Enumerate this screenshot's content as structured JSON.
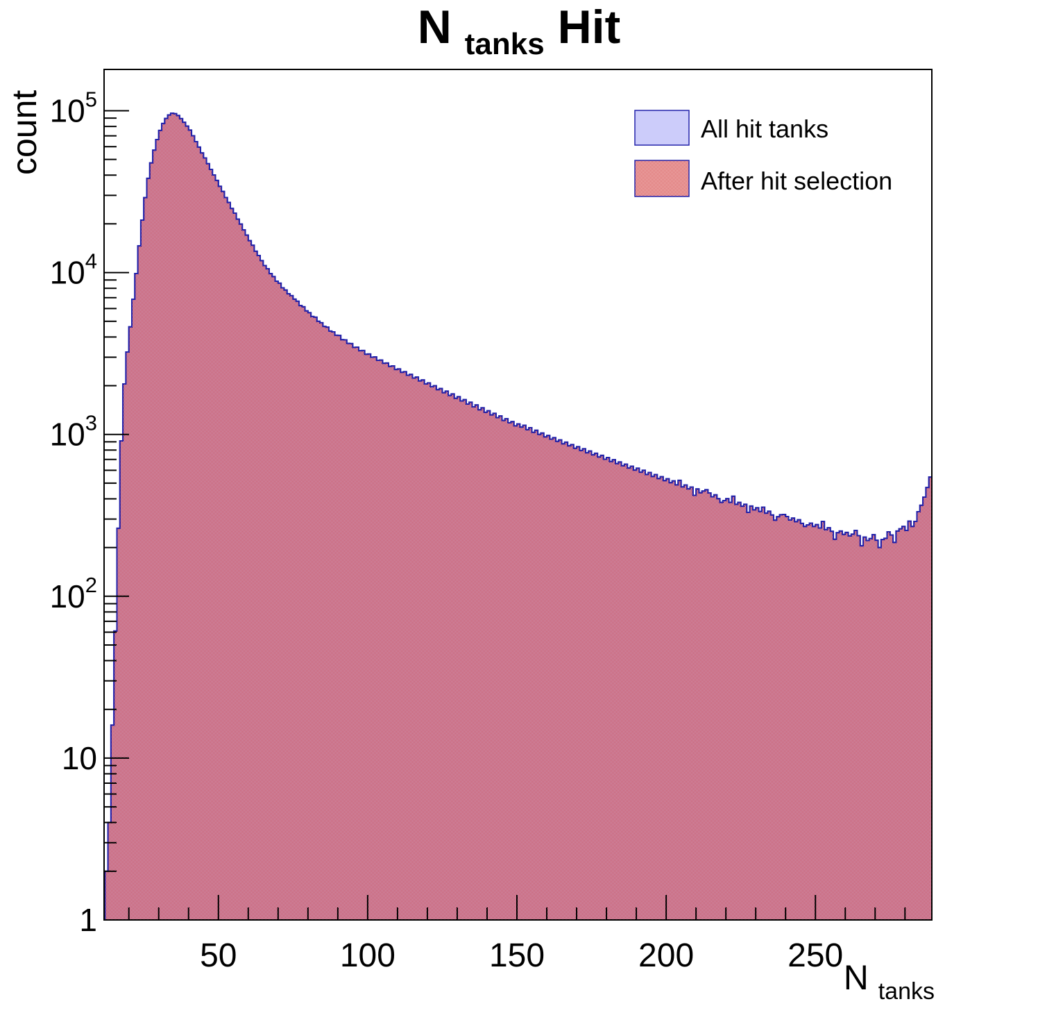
{
  "figure": {
    "title": {
      "pre": "N",
      "sub": "tanks",
      "post": " Hit"
    },
    "y_axis": {
      "label": "count",
      "ticks": [
        {
          "value": 100000,
          "base": "10",
          "exp": "5"
        },
        {
          "value": 10000,
          "base": "10",
          "exp": "4"
        },
        {
          "value": 1000,
          "base": "10",
          "exp": "3"
        },
        {
          "value": 100,
          "base": "10",
          "exp": "2"
        },
        {
          "value": 10,
          "base": "10",
          "exp": ""
        },
        {
          "value": 1,
          "base": "1",
          "exp": ""
        }
      ]
    },
    "x_axis": {
      "label_pre": "N",
      "label_sub": "tanks",
      "ticks": [
        {
          "value": 50,
          "label": "50"
        },
        {
          "value": 100,
          "label": "100"
        },
        {
          "value": 150,
          "label": "150"
        },
        {
          "value": 200,
          "label": "200"
        },
        {
          "value": 250,
          "label": "250"
        }
      ],
      "minor_step": 10
    },
    "legend": {
      "items": [
        {
          "label": "All hit tanks",
          "swatch": "solid-lavender"
        },
        {
          "label": "After hit selection",
          "swatch": "red-hatch"
        }
      ]
    }
  },
  "colors": {
    "all_fill": "#ccccfa",
    "hatch_red": "#cc2222",
    "outline": "#2222aa",
    "axis": "#000000"
  },
  "chart_data": {
    "type": "bar",
    "subtype": "histogram-log-y",
    "title": "N_tanks Hit",
    "xlabel": "N_tanks",
    "ylabel": "count",
    "yscale": "log",
    "xlim": [
      11.7,
      289
    ],
    "ylim": [
      1,
      180000
    ],
    "grid": false,
    "legend_position": "top-right-inside",
    "x_start": 12,
    "bin_width": 1,
    "series": [
      {
        "name": "All hit tanks",
        "style": "solid-lavender"
      },
      {
        "name": "After hit selection",
        "style": "red-hatch",
        "note": "visually identical to All hit tanks; overlaps everywhere"
      }
    ],
    "counts": [
      2,
      4,
      16,
      61,
      263,
      912,
      2050,
      3230,
      4620,
      6840,
      9860,
      14620,
      21100,
      29050,
      38200,
      47600,
      57100,
      66400,
      75600,
      83400,
      89600,
      94100,
      96600,
      95900,
      93400,
      89400,
      84900,
      80400,
      75900,
      70100,
      64400,
      59600,
      54900,
      51100,
      47100,
      43400,
      40100,
      37100,
      34100,
      31700,
      29100,
      27100,
      24900,
      23300,
      21400,
      19950,
      18350,
      17050,
      15750,
      14750,
      13550,
      12750,
      11850,
      11050,
      10550,
      9850,
      9450,
      8850,
      8600,
      8050,
      7800,
      7400,
      7200,
      6850,
      6650,
      6250,
      6150,
      5800,
      5650,
      5350,
      5300,
      5000,
      4900,
      4650,
      4600,
      4350,
      4300,
      4100,
      4090,
      3850,
      3840,
      3650,
      3640,
      3450,
      3460,
      3290,
      3300,
      3130,
      3140,
      3000,
      3010,
      2870,
      2880,
      2750,
      2760,
      2630,
      2650,
      2520,
      2540,
      2420,
      2440,
      2320,
      2350,
      2230,
      2260,
      2140,
      2170,
      2050,
      2080,
      1970,
      2000,
      1890,
      1920,
      1810,
      1850,
      1740,
      1780,
      1670,
      1710,
      1610,
      1640,
      1540,
      1580,
      1480,
      1520,
      1420,
      1460,
      1370,
      1400,
      1320,
      1350,
      1270,
      1300,
      1220,
      1250,
      1180,
      1200,
      1130,
      1160,
      1110,
      1140,
      1070,
      1100,
      1030,
      1060,
      1000,
      1020,
      965,
      985,
      935,
      955,
      905,
      925,
      875,
      895,
      850,
      865,
      820,
      840,
      795,
      815,
      770,
      790,
      748,
      765,
      725,
      742,
      702,
      720,
      680,
      698,
      660,
      676,
      640,
      655,
      620,
      636,
      602,
      618,
      584,
      600,
      566,
      582,
      550,
      565,
      534,
      548,
      518,
      532,
      503,
      516,
      488,
      520,
      474,
      487,
      461,
      473,
      420,
      460,
      436,
      447,
      455,
      435,
      412,
      423,
      401,
      380,
      390,
      401,
      380,
      415,
      370,
      380,
      360,
      370,
      330,
      361,
      342,
      352,
      334,
      355,
      326,
      335,
      318,
      295,
      310,
      319,
      320,
      311,
      296,
      304,
      289,
      297,
      282,
      270,
      276,
      283,
      270,
      277,
      264,
      290,
      258,
      265,
      252,
      225,
      247,
      253,
      241,
      248,
      236,
      242,
      255,
      237,
      205,
      232,
      221,
      227,
      240,
      222,
      200,
      224,
      228,
      250,
      239,
      215,
      253,
      261,
      270,
      255,
      291,
      270,
      290,
      333,
      365,
      410,
      470,
      545
    ]
  }
}
